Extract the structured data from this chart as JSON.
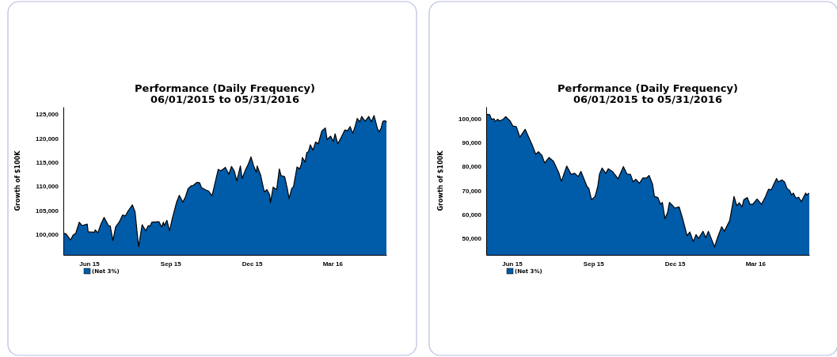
{
  "chart_data": [
    {
      "type": "area",
      "title": "Performance (Daily Frequency)",
      "subtitle": "06/01/2015 to 05/31/2016",
      "ylabel": "Growth of $100K",
      "legend": "bottom left",
      "grid": false,
      "xlim": [
        "2015-06-01",
        "2016-05-31"
      ],
      "xticks": [
        {
          "value": "2015-06-30",
          "label": "Jun 15"
        },
        {
          "value": "2015-09-30",
          "label": "Sep 15"
        },
        {
          "value": "2015-12-31",
          "label": "Dec 15"
        },
        {
          "value": "2016-03-31",
          "label": "Mar 16"
        }
      ],
      "ylim": [
        95700,
        126500
      ],
      "yticks": [
        {
          "value": 100000,
          "label": "100,000"
        },
        {
          "value": 105000,
          "label": "105,000"
        },
        {
          "value": 110000,
          "label": "110,000"
        },
        {
          "value": 115000,
          "label": "115,000"
        },
        {
          "value": 120000,
          "label": "120,000"
        },
        {
          "value": 125000,
          "label": "125,000"
        }
      ],
      "x": [
        "2015-06-01",
        "2015-06-04",
        "2015-06-09",
        "2015-06-12",
        "2015-06-15",
        "2015-06-19",
        "2015-06-22",
        "2015-06-28",
        "2015-06-29",
        "2015-07-06",
        "2015-07-07",
        "2015-07-10",
        "2015-07-13",
        "2015-07-17",
        "2015-07-22",
        "2015-07-24",
        "2015-07-27",
        "2015-07-30",
        "2015-08-03",
        "2015-08-07",
        "2015-08-10",
        "2015-08-13",
        "2015-08-18",
        "2015-08-21",
        "2015-08-25",
        "2015-08-29",
        "2015-09-02",
        "2015-09-05",
        "2015-09-07",
        "2015-09-09",
        "2015-09-17",
        "2015-09-20",
        "2015-09-22",
        "2015-09-23",
        "2015-09-26",
        "2015-09-29",
        "2015-10-02",
        "2015-10-07",
        "2015-10-10",
        "2015-10-14",
        "2015-10-17",
        "2015-10-20",
        "2015-10-23",
        "2015-10-26",
        "2015-10-30",
        "2015-11-02",
        "2015-11-04",
        "2015-11-09",
        "2015-11-12",
        "2015-11-16",
        "2015-11-18",
        "2015-11-23",
        "2015-11-26",
        "2015-11-29",
        "2015-12-01",
        "2015-12-05",
        "2015-12-08",
        "2015-12-11",
        "2015-12-14",
        "2015-12-18",
        "2015-12-20",
        "2015-12-24",
        "2015-12-27",
        "2015-12-30",
        "2016-01-02",
        "2016-01-05",
        "2016-01-06",
        "2016-01-10",
        "2016-01-14",
        "2016-01-17",
        "2016-01-20",
        "2016-01-21",
        "2016-01-24",
        "2016-01-28",
        "2016-01-31",
        "2016-02-02",
        "2016-02-06",
        "2016-02-09",
        "2016-02-11",
        "2016-02-14",
        "2016-02-16",
        "2016-02-20",
        "2016-02-23",
        "2016-02-25",
        "2016-02-26",
        "2016-02-29",
        "2016-03-02",
        "2016-03-04",
        "2016-03-06",
        "2016-03-09",
        "2016-03-12",
        "2016-03-15",
        "2016-03-19",
        "2016-03-23",
        "2016-03-25",
        "2016-03-29",
        "2016-04-01",
        "2016-04-03",
        "2016-04-06",
        "2016-04-10",
        "2016-04-14",
        "2016-04-17",
        "2016-04-20",
        "2016-04-23",
        "2016-04-26",
        "2016-04-28",
        "2016-05-01",
        "2016-05-03",
        "2016-05-07",
        "2016-05-11",
        "2016-05-14",
        "2016-05-17",
        "2016-05-21",
        "2016-05-23",
        "2016-05-25",
        "2016-05-27",
        "2016-05-30",
        "2016-05-31"
      ],
      "series": [
        {
          "name": "(Net 3%)",
          "color": "#005ba8",
          "values": [
            100200,
            100100,
            98800,
            99800,
            100200,
            102500,
            101800,
            102100,
            100500,
            100400,
            100900,
            100300,
            101900,
            103500,
            101800,
            101700,
            98700,
            101500,
            102500,
            104000,
            103800,
            104800,
            106100,
            104700,
            97400,
            102000,
            100700,
            101800,
            101700,
            102500,
            102600,
            101500,
            102500,
            101800,
            102900,
            100700,
            103200,
            106700,
            108100,
            106700,
            107800,
            109500,
            110000,
            110200,
            110800,
            110700,
            109700,
            109200,
            109000,
            108000,
            109600,
            113500,
            113200,
            113600,
            113900,
            112500,
            114100,
            113200,
            111100,
            114200,
            111600,
            113500,
            114600,
            116100,
            114200,
            112900,
            114200,
            112200,
            108800,
            109300,
            108200,
            106600,
            109800,
            109300,
            113600,
            112200,
            112000,
            109500,
            107400,
            109500,
            109900,
            114000,
            113600,
            114600,
            116000,
            115000,
            117000,
            117200,
            118600,
            117500,
            119200,
            118800,
            121500,
            122100,
            119700,
            120400,
            119300,
            120900,
            118800,
            120200,
            121700,
            121500,
            122400,
            121000,
            122700,
            124100,
            123400,
            124500,
            123500,
            124500,
            123400,
            124700,
            121900,
            121300,
            122100,
            123500,
            123600,
            123200
          ]
        }
      ]
    },
    {
      "type": "area",
      "title": "Performance (Daily Frequency)",
      "subtitle": "06/01/2015 to 05/31/2016",
      "ylabel": "Growth of $100K",
      "legend": "bottom left",
      "grid": false,
      "xlim": [
        "2015-06-01",
        "2016-05-31"
      ],
      "xticks": [
        {
          "value": "2015-06-30",
          "label": "Jun 15"
        },
        {
          "value": "2015-09-30",
          "label": "Sep 15"
        },
        {
          "value": "2015-12-31",
          "label": "Dec 15"
        },
        {
          "value": "2016-03-31",
          "label": "Mar 16"
        }
      ],
      "ylim": [
        43000,
        105000
      ],
      "yticks": [
        {
          "value": 50000,
          "label": "50,000"
        },
        {
          "value": 60000,
          "label": "60,000"
        },
        {
          "value": 70000,
          "label": "70,000"
        },
        {
          "value": 80000,
          "label": "80,000"
        },
        {
          "value": 90000,
          "label": "90,000"
        },
        {
          "value": 100000,
          "label": "100,000"
        }
      ],
      "x": [
        "2015-06-01",
        "2015-06-05",
        "2015-06-07",
        "2015-06-10",
        "2015-06-11",
        "2015-06-14",
        "2015-06-16",
        "2015-06-20",
        "2015-06-23",
        "2015-06-28",
        "2015-07-01",
        "2015-07-05",
        "2015-07-09",
        "2015-07-15",
        "2015-07-19",
        "2015-07-23",
        "2015-07-27",
        "2015-07-30",
        "2015-08-03",
        "2015-08-06",
        "2015-08-11",
        "2015-08-16",
        "2015-08-22",
        "2015-08-25",
        "2015-08-28",
        "2015-08-31",
        "2015-09-05",
        "2015-09-09",
        "2015-09-13",
        "2015-09-16",
        "2015-09-23",
        "2015-09-25",
        "2015-09-28",
        "2015-10-02",
        "2015-10-05",
        "2015-10-07",
        "2015-10-10",
        "2015-10-14",
        "2015-10-17",
        "2015-10-22",
        "2015-10-28",
        "2015-11-03",
        "2015-11-07",
        "2015-11-11",
        "2015-11-14",
        "2015-11-17",
        "2015-11-21",
        "2015-11-25",
        "2015-11-29",
        "2015-12-02",
        "2015-12-06",
        "2015-12-08",
        "2015-12-12",
        "2015-12-15",
        "2015-12-17",
        "2015-12-20",
        "2015-12-23",
        "2015-12-25",
        "2015-12-28",
        "2015-12-31",
        "2016-01-05",
        "2016-01-09",
        "2016-01-14",
        "2016-01-17",
        "2016-01-21",
        "2016-01-24",
        "2016-01-27",
        "2016-02-01",
        "2016-02-04",
        "2016-02-07",
        "2016-02-14",
        "2016-02-17",
        "2016-02-22",
        "2016-02-25",
        "2016-03-02",
        "2016-03-07",
        "2016-03-10",
        "2016-03-13",
        "2016-03-16",
        "2016-03-18",
        "2016-03-22",
        "2016-03-25",
        "2016-03-28",
        "2016-04-02",
        "2016-04-07",
        "2016-04-11",
        "2016-04-15",
        "2016-04-18",
        "2016-04-24",
        "2016-04-26",
        "2016-04-30",
        "2016-05-03",
        "2016-05-06",
        "2016-05-09",
        "2016-05-11",
        "2016-05-13",
        "2016-05-16",
        "2016-05-19",
        "2016-05-22",
        "2016-05-27",
        "2016-05-28",
        "2016-05-31"
      ],
      "series": [
        {
          "name": "(Net 3%)",
          "color": "#005ba8",
          "values": [
            101900,
            101700,
            99800,
            100000,
            98900,
            99800,
            99100,
            99800,
            100900,
            99100,
            97000,
            96700,
            92300,
            95600,
            92300,
            89000,
            85100,
            86200,
            84600,
            81500,
            83800,
            82200,
            77400,
            73800,
            77100,
            80200,
            76700,
            77200,
            75800,
            78000,
            71600,
            70800,
            66100,
            67500,
            71600,
            76900,
            79400,
            77100,
            79100,
            77800,
            74900,
            80000,
            76900,
            76700,
            73600,
            74700,
            73000,
            75200,
            75200,
            76300,
            72500,
            67500,
            67000,
            64200,
            65000,
            58100,
            60900,
            65000,
            63900,
            62600,
            63100,
            58100,
            51000,
            52600,
            48600,
            51500,
            49900,
            52900,
            50200,
            52900,
            46300,
            49900,
            54800,
            52900,
            57300,
            67500,
            63700,
            64800,
            63100,
            66100,
            67000,
            64200,
            64200,
            66400,
            64200,
            67000,
            70500,
            70300,
            75000,
            73600,
            74400,
            73600,
            70800,
            69900,
            68100,
            68900,
            66700,
            67200,
            65300,
            68900,
            68100,
            68900
          ]
        }
      ]
    }
  ]
}
